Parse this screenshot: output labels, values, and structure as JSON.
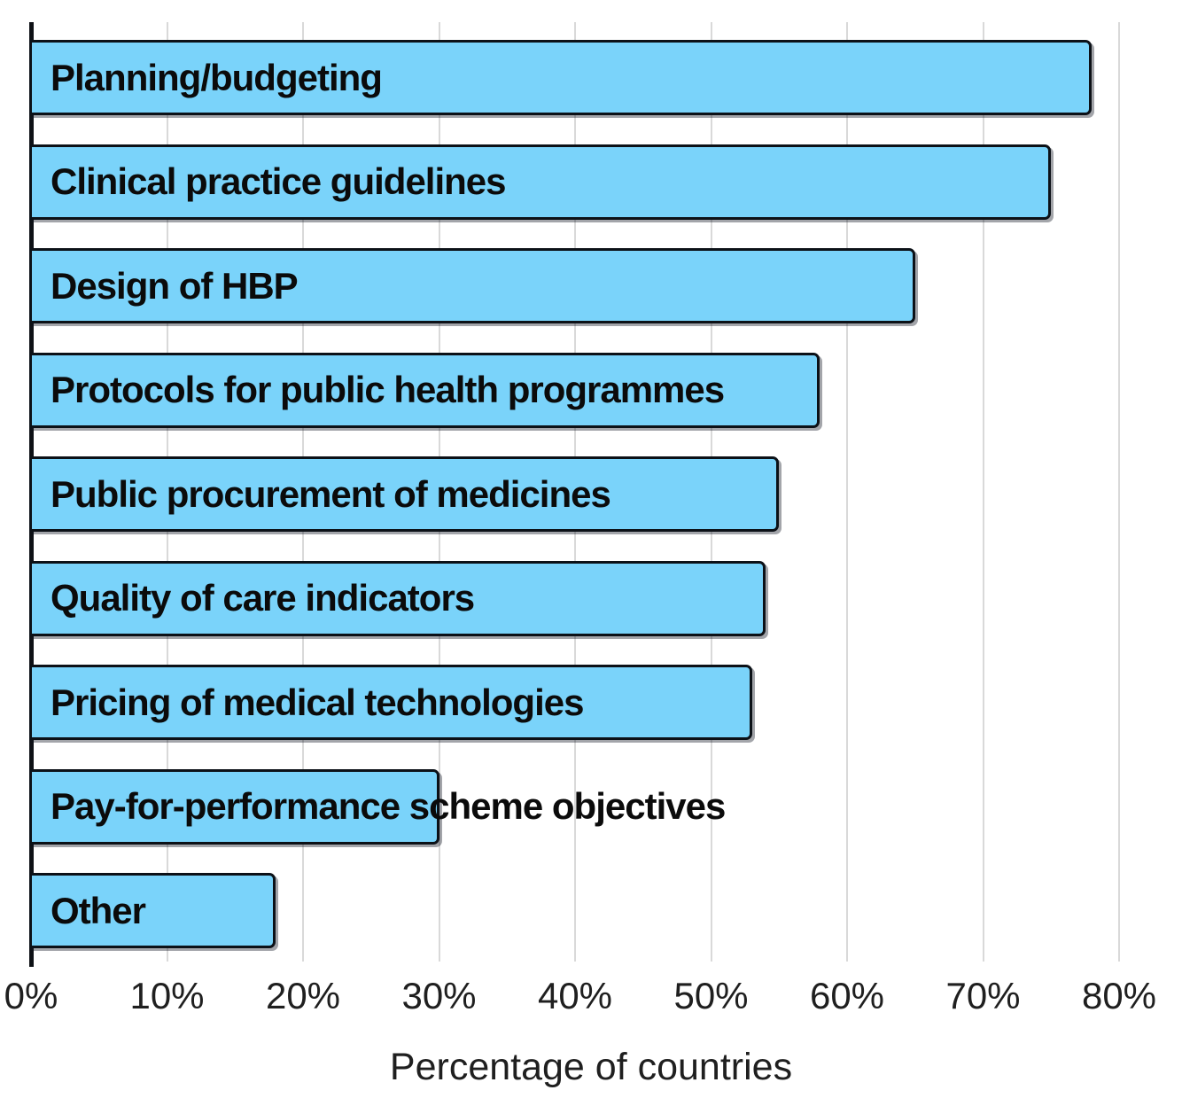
{
  "chart_data": {
    "type": "bar",
    "orientation": "horizontal",
    "categories": [
      "Planning/budgeting",
      "Clinical practice guidelines",
      "Design of HBP",
      "Protocols for public health programmes",
      "Public procurement of medicines",
      "Quality of care indicators",
      "Pricing of medical technologies",
      "Pay-for-performance scheme objectives",
      "Other"
    ],
    "values": [
      78,
      75,
      65,
      58,
      55,
      54,
      53,
      30,
      18
    ],
    "unit": "%",
    "title": "",
    "xlabel": "Percentage of countries",
    "ylabel": "",
    "xlim": [
      0,
      80
    ],
    "x_ticks": [
      "0%",
      "10%",
      "20%",
      "30%",
      "40%",
      "50%",
      "60%",
      "70%",
      "80%"
    ],
    "grid": "vertical-gridlines-on",
    "legend": "none",
    "label_position": "inside-bar-start",
    "colors": {
      "bar_fill": "#7AD3FA",
      "bar_outline": "#0C1117",
      "gridline": "#D9D9D9",
      "axis_line": "#0E1116",
      "text": "#1F1F1F"
    }
  }
}
